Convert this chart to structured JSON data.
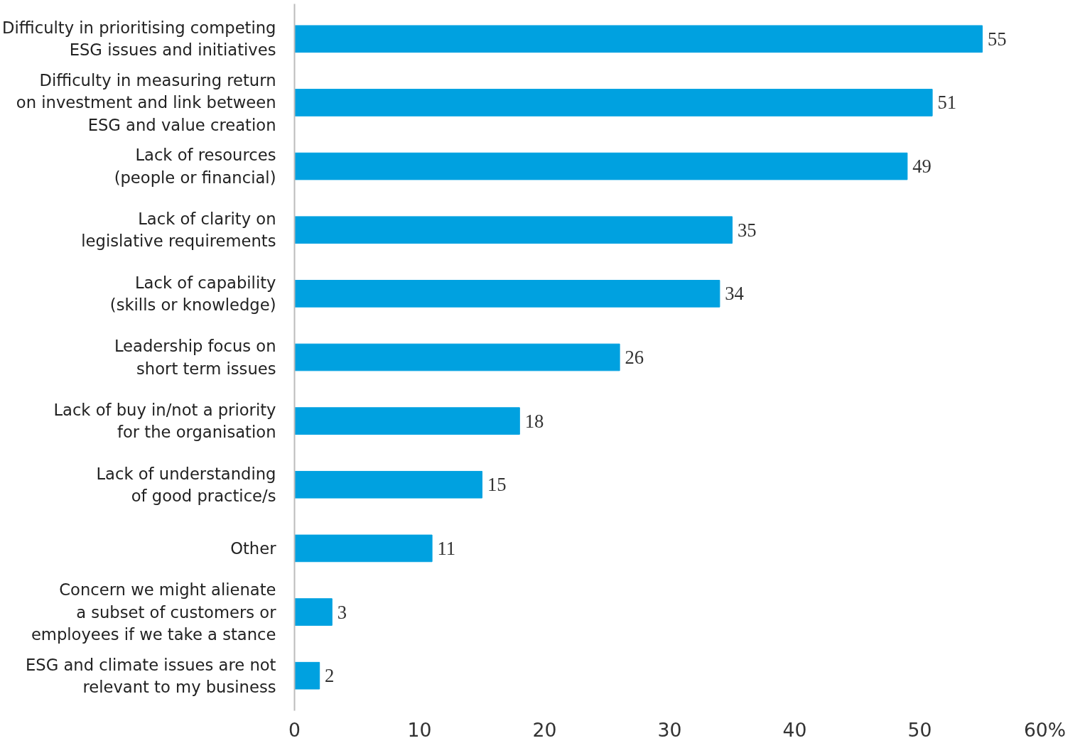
{
  "chart_data": {
    "type": "bar",
    "orientation": "horizontal",
    "categories": [
      "Difficulty in prioritising competing\nESG issues and initiatives",
      "Difficulty in measuring return\non investment and link between\nESG and value creation",
      "Lack of resources\n(people or financial)",
      "Lack of clarity on\nlegislative requirements",
      "Lack of capability\n(skills or knowledge)",
      "Leadership focus on\nshort term issues",
      "Lack of buy in/not a priority\nfor the organisation",
      "Lack of understanding\nof good practice/s",
      "Other",
      "Concern we might alienate\na subset of customers or\nemployees if we take a stance",
      "ESG and climate issues are not\nrelevant to my business"
    ],
    "values": [
      55,
      51,
      49,
      35,
      34,
      26,
      18,
      15,
      11,
      3,
      2
    ],
    "color": "#00a1e0",
    "xlim": [
      0,
      60
    ],
    "xticks": [
      0,
      10,
      20,
      30,
      40,
      50,
      {
        "value": 60,
        "label": "60%"
      }
    ],
    "data_labels": true,
    "grid": false
  }
}
